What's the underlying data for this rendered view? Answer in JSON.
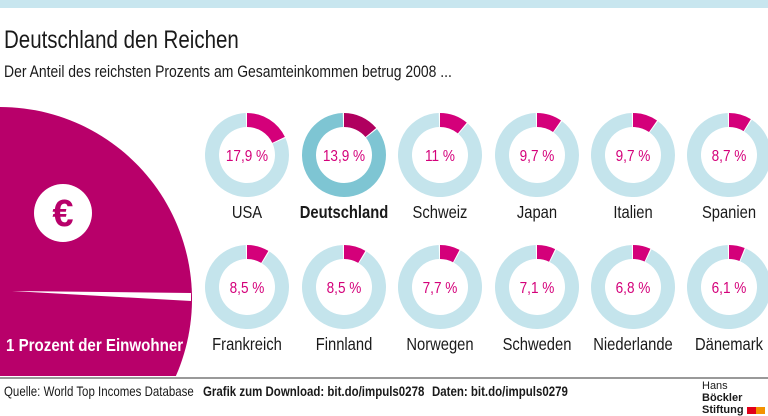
{
  "header": {
    "title": "Deutschland den Reichen",
    "subtitle": "Der Anteil des reichsten Prozents am Gesamteinkommen betrug 2008 ..."
  },
  "chart_data": {
    "type": "pie",
    "unit": "%",
    "categories": [
      "USA",
      "Deutschland",
      "Schweiz",
      "Japan",
      "Italien",
      "Spanien",
      "Frankreich",
      "Finnland",
      "Norwegen",
      "Schweden",
      "Niederlande",
      "Dänemark"
    ],
    "values": [
      17.9,
      13.9,
      11,
      9.7,
      9.7,
      8.7,
      8.5,
      8.5,
      7.7,
      7.1,
      6.8,
      6.1
    ],
    "labels": [
      "17,9 %",
      "13,9 %",
      "11 %",
      "9,7 %",
      "9,7 %",
      "8,7 %",
      "8,5 %",
      "8,5 %",
      "7,7 %",
      "7,1 %",
      "6,8 %",
      "6,1 %"
    ],
    "highlight": "Deutschland",
    "big_pie": {
      "label": "1 Prozent der Einwohner",
      "value": 1,
      "icon": "euro-icon"
    },
    "colors": {
      "share": "#d4007a",
      "share_highlight": "#b0005f",
      "rest": "#c4e4ec",
      "rest_highlight": "#7ec5d3",
      "big_pie": "#b8006a"
    }
  },
  "footer": {
    "source": "Quelle: World Top Incomes Database",
    "download": "Grafik zum Download: bit.do/impuls0278",
    "data": "Daten: bit.do/impuls0279"
  },
  "logo": {
    "line1a": "Hans ",
    "line1b": "Böckler",
    "line2": "Stiftung"
  }
}
